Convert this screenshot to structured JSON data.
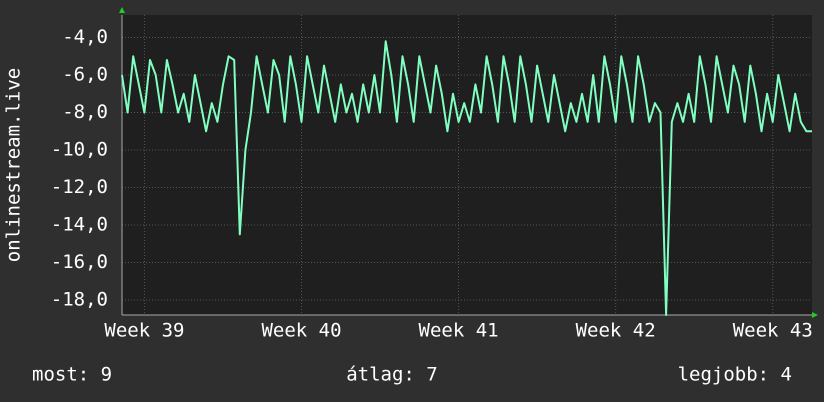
{
  "chart_data": {
    "type": "line",
    "ylabel": "onlinestream.live",
    "series": [
      {
        "name": "onlinestream.live",
        "color": "#80ffc0",
        "values": [
          -6.0,
          -8.0,
          -5.0,
          -6.5,
          -8.0,
          -5.2,
          -6.0,
          -8.0,
          -5.2,
          -6.5,
          -8.0,
          -7.0,
          -8.5,
          -6.0,
          -7.5,
          -9.0,
          -7.5,
          -8.5,
          -6.5,
          -5.0,
          -5.2,
          -14.5,
          -10.0,
          -8.0,
          -5.0,
          -6.5,
          -8.0,
          -5.2,
          -6.0,
          -8.5,
          -5.0,
          -6.5,
          -8.5,
          -5.0,
          -6.5,
          -8.0,
          -5.5,
          -7.0,
          -8.5,
          -6.5,
          -8.0,
          -7.0,
          -8.5,
          -6.5,
          -8.0,
          -6.0,
          -8.0,
          -4.2,
          -6.0,
          -8.5,
          -5.0,
          -6.5,
          -8.5,
          -5.0,
          -6.5,
          -8.0,
          -5.5,
          -7.0,
          -9.0,
          -7.0,
          -8.5,
          -7.5,
          -8.5,
          -6.5,
          -8.0,
          -5.0,
          -6.5,
          -8.5,
          -5.0,
          -6.5,
          -8.5,
          -5.0,
          -6.5,
          -8.5,
          -5.5,
          -7.0,
          -8.5,
          -6.0,
          -7.5,
          -9.0,
          -7.5,
          -8.5,
          -7.0,
          -8.5,
          -6.0,
          -8.5,
          -5.0,
          -6.5,
          -8.5,
          -5.0,
          -6.5,
          -8.5,
          -5.0,
          -6.5,
          -8.5,
          -7.5,
          -8.0,
          -18.8,
          -8.5,
          -7.5,
          -8.5,
          -7.0,
          -8.5,
          -5.0,
          -6.5,
          -8.5,
          -5.0,
          -6.5,
          -8.0,
          -5.5,
          -6.5,
          -8.5,
          -5.5,
          -7.0,
          -9.0,
          -7.0,
          -8.5,
          -6.0,
          -7.5,
          -9.0,
          -7.0,
          -8.5,
          -9.0,
          -9.0
        ]
      }
    ],
    "xlim": [
      0,
      123
    ],
    "xticks": [
      {
        "value": 4,
        "label": "Week 39"
      },
      {
        "value": 32,
        "label": "Week 40"
      },
      {
        "value": 60,
        "label": "Week 41"
      },
      {
        "value": 88,
        "label": "Week 42"
      },
      {
        "value": 116,
        "label": "Week 43"
      }
    ],
    "ylim": [
      -18.8,
      -2.8
    ],
    "yticks": [
      {
        "value": -4,
        "label": "-4,0"
      },
      {
        "value": -6,
        "label": "-6,0"
      },
      {
        "value": -8,
        "label": "-8,0"
      },
      {
        "value": -10,
        "label": "-10,0"
      },
      {
        "value": -12,
        "label": "-12,0"
      },
      {
        "value": -14,
        "label": "-14,0"
      },
      {
        "value": -16,
        "label": "-16,0"
      },
      {
        "value": -18,
        "label": "-18,0"
      }
    ],
    "grid": true,
    "stats": [
      "most: 9",
      "átlag: 7",
      "legjobb: 4"
    ]
  }
}
